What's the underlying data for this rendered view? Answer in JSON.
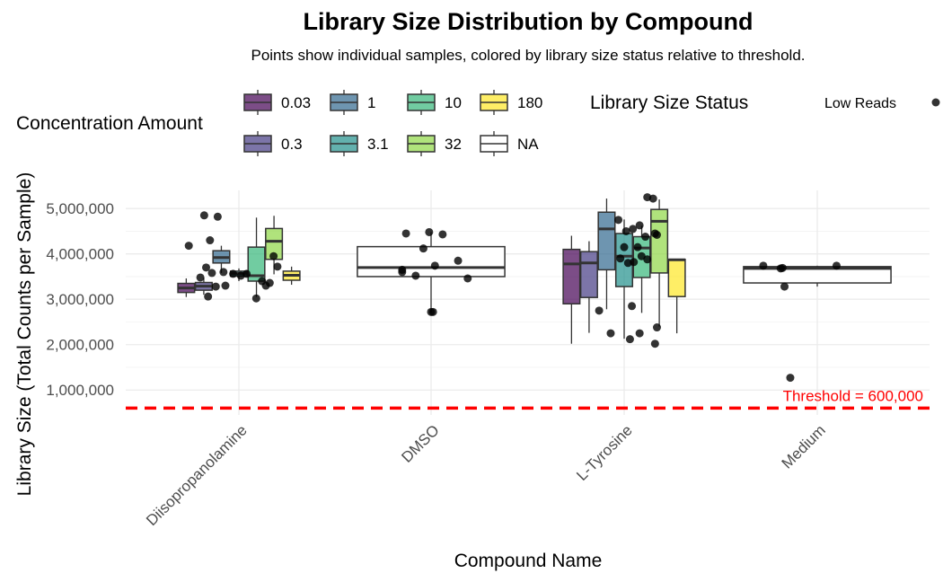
{
  "chart_data": {
    "type": "box",
    "title": "Library Size Distribution by Compound",
    "subtitle": "Points show individual samples, colored by library size status relative to threshold.",
    "xlabel": "Compound Name",
    "ylabel": "Library Size (Total Counts per Sample)",
    "ylim": [
      450000,
      5400000
    ],
    "yticks": [
      1000000,
      2000000,
      3000000,
      4000000,
      5000000
    ],
    "ytick_labels": [
      "1,000,000",
      "2,000,000",
      "3,000,000",
      "4,000,000",
      "5,000,000"
    ],
    "categories": [
      "Diisopropanolamine",
      "DMSO",
      "L-Tyrosine",
      "Medium"
    ],
    "grid": true,
    "threshold": {
      "value": 600000,
      "label": "Threshold = 600,000",
      "color": "#ff0000"
    },
    "legend_fill": {
      "title": "Concentration Amount",
      "items": [
        {
          "label": "0.03",
          "color": "#440154"
        },
        {
          "label": "1",
          "color": "#31688E"
        },
        {
          "label": "10",
          "color": "#35B779"
        },
        {
          "label": "180",
          "color": "#FDE725"
        },
        {
          "label": "0.3",
          "color": "#443A83"
        },
        {
          "label": "3.1",
          "color": "#21908C"
        },
        {
          "label": "32",
          "color": "#8FD744"
        },
        {
          "label": "NA",
          "color": "#ffffff"
        }
      ]
    },
    "legend_points": {
      "title": "Library Size Status",
      "items": [
        {
          "label": "Low Reads",
          "color": "#000000"
        }
      ]
    },
    "boxes": [
      {
        "category": "Diisopropanolamine",
        "concentration": "0.03",
        "color": "#440154",
        "min": 3050000,
        "q1": 3150000,
        "median": 3250000,
        "q3": 3350000,
        "max": 3460000
      },
      {
        "category": "Diisopropanolamine",
        "concentration": "0.3",
        "color": "#443A83",
        "min": 3100000,
        "q1": 3200000,
        "median": 3290000,
        "q3": 3370000,
        "max": 3480000
      },
      {
        "category": "Diisopropanolamine",
        "concentration": "1",
        "color": "#31688E",
        "min": 3580000,
        "q1": 3800000,
        "median": 3920000,
        "q3": 4070000,
        "max": 4180000
      },
      {
        "category": "Diisopropanolamine",
        "concentration": "3.1",
        "color": "#21908C",
        "min": 3400000,
        "q1": 3510000,
        "median": 3570000,
        "q3": 3620000,
        "max": 3680000
      },
      {
        "category": "Diisopropanolamine",
        "concentration": "10",
        "color": "#35B779",
        "min": 3050000,
        "q1": 3400000,
        "median": 3520000,
        "q3": 4150000,
        "max": 4800000
      },
      {
        "category": "Diisopropanolamine",
        "concentration": "32",
        "color": "#8FD744",
        "min": 3550000,
        "q1": 3880000,
        "median": 4280000,
        "q3": 4560000,
        "max": 4840000
      },
      {
        "category": "Diisopropanolamine",
        "concentration": "180",
        "color": "#FDE725",
        "min": 3320000,
        "q1": 3420000,
        "median": 3530000,
        "q3": 3620000,
        "max": 3720000
      },
      {
        "category": "DMSO",
        "concentration": "NA",
        "color": "#ffffff",
        "min": 2700000,
        "q1": 3500000,
        "median": 3700000,
        "q3": 4160000,
        "max": 4480000
      },
      {
        "category": "L-Tyrosine",
        "concentration": "0.03",
        "color": "#440154",
        "min": 2020000,
        "q1": 2900000,
        "median": 3780000,
        "q3": 4100000,
        "max": 4400000
      },
      {
        "category": "L-Tyrosine",
        "concentration": "0.3",
        "color": "#443A83",
        "min": 2260000,
        "q1": 3040000,
        "median": 3800000,
        "q3": 4050000,
        "max": 4280000
      },
      {
        "category": "L-Tyrosine",
        "concentration": "1",
        "color": "#31688E",
        "min": 2780000,
        "q1": 3650000,
        "median": 4550000,
        "q3": 4920000,
        "max": 5220000
      },
      {
        "category": "L-Tyrosine",
        "concentration": "3.1",
        "color": "#21908C",
        "min": 2130000,
        "q1": 3280000,
        "median": 3950000,
        "q3": 4450000,
        "max": 4760000
      },
      {
        "category": "L-Tyrosine",
        "concentration": "10",
        "color": "#35B779",
        "min": 2700000,
        "q1": 3480000,
        "median": 4130000,
        "q3": 4380000,
        "max": 4620000
      },
      {
        "category": "L-Tyrosine",
        "concentration": "32",
        "color": "#8FD744",
        "min": 2400000,
        "q1": 3580000,
        "median": 4720000,
        "q3": 4980000,
        "max": 5200000
      },
      {
        "category": "L-Tyrosine",
        "concentration": "180",
        "color": "#FDE725",
        "min": 2250000,
        "q1": 3060000,
        "median": 3870000,
        "q3": 3880000,
        "max": 3890000
      },
      {
        "category": "Medium",
        "concentration": "NA",
        "color": "#ffffff",
        "min": 3280000,
        "q1": 3360000,
        "median": 3680000,
        "q3": 3720000,
        "max": 3740000
      }
    ],
    "points": [
      {
        "category": "Diisopropanolamine",
        "offset": -0.26,
        "y": 4180000
      },
      {
        "category": "Diisopropanolamine",
        "offset": -0.2,
        "y": 3480000
      },
      {
        "category": "Diisopropanolamine",
        "offset": -0.17,
        "y": 3700000
      },
      {
        "category": "Diisopropanolamine",
        "offset": -0.18,
        "y": 4850000
      },
      {
        "category": "Diisopropanolamine",
        "offset": -0.16,
        "y": 3060000
      },
      {
        "category": "Diisopropanolamine",
        "offset": -0.15,
        "y": 4300000
      },
      {
        "category": "Diisopropanolamine",
        "offset": -0.14,
        "y": 3580000
      },
      {
        "category": "Diisopropanolamine",
        "offset": -0.12,
        "y": 3280000
      },
      {
        "category": "Diisopropanolamine",
        "offset": -0.11,
        "y": 4820000
      },
      {
        "category": "Diisopropanolamine",
        "offset": -0.08,
        "y": 3600000
      },
      {
        "category": "Diisopropanolamine",
        "offset": -0.07,
        "y": 3300000
      },
      {
        "category": "Diisopropanolamine",
        "offset": -0.03,
        "y": 3560000
      },
      {
        "category": "Diisopropanolamine",
        "offset": 0.01,
        "y": 3520000
      },
      {
        "category": "Diisopropanolamine",
        "offset": 0.04,
        "y": 3560000
      },
      {
        "category": "Diisopropanolamine",
        "offset": 0.09,
        "y": 3020000
      },
      {
        "category": "Diisopropanolamine",
        "offset": 0.12,
        "y": 3400000
      },
      {
        "category": "Diisopropanolamine",
        "offset": 0.14,
        "y": 3300000
      },
      {
        "category": "Diisopropanolamine",
        "offset": 0.16,
        "y": 3360000
      },
      {
        "category": "Diisopropanolamine",
        "offset": 0.18,
        "y": 3950000
      },
      {
        "category": "Diisopropanolamine",
        "offset": 0.2,
        "y": 3720000
      },
      {
        "category": "DMSO",
        "offset": -0.15,
        "y": 3650000
      },
      {
        "category": "DMSO",
        "offset": -0.15,
        "y": 3600000
      },
      {
        "category": "DMSO",
        "offset": -0.13,
        "y": 4450000
      },
      {
        "category": "DMSO",
        "offset": -0.08,
        "y": 3520000
      },
      {
        "category": "DMSO",
        "offset": -0.04,
        "y": 4120000
      },
      {
        "category": "DMSO",
        "offset": -0.01,
        "y": 4480000
      },
      {
        "category": "DMSO",
        "offset": 0.0,
        "y": 2720000
      },
      {
        "category": "DMSO",
        "offset": 0.01,
        "y": 2720000
      },
      {
        "category": "DMSO",
        "offset": 0.02,
        "y": 3740000
      },
      {
        "category": "DMSO",
        "offset": 0.06,
        "y": 4430000
      },
      {
        "category": "DMSO",
        "offset": 0.14,
        "y": 3850000
      },
      {
        "category": "DMSO",
        "offset": 0.19,
        "y": 3460000
      },
      {
        "category": "L-Tyrosine",
        "offset": -0.13,
        "y": 2750000
      },
      {
        "category": "L-Tyrosine",
        "offset": -0.07,
        "y": 2250000
      },
      {
        "category": "L-Tyrosine",
        "offset": -0.03,
        "y": 4750000
      },
      {
        "category": "L-Tyrosine",
        "offset": -0.02,
        "y": 3900000
      },
      {
        "category": "L-Tyrosine",
        "offset": 0.0,
        "y": 4150000
      },
      {
        "category": "L-Tyrosine",
        "offset": 0.01,
        "y": 4500000
      },
      {
        "category": "L-Tyrosine",
        "offset": 0.02,
        "y": 3800000
      },
      {
        "category": "L-Tyrosine",
        "offset": 0.03,
        "y": 2120000
      },
      {
        "category": "L-Tyrosine",
        "offset": 0.04,
        "y": 2850000
      },
      {
        "category": "L-Tyrosine",
        "offset": 0.045,
        "y": 4550000
      },
      {
        "category": "L-Tyrosine",
        "offset": 0.05,
        "y": 3820000
      },
      {
        "category": "L-Tyrosine",
        "offset": 0.07,
        "y": 4150000
      },
      {
        "category": "L-Tyrosine",
        "offset": 0.08,
        "y": 2250000
      },
      {
        "category": "L-Tyrosine",
        "offset": 0.08,
        "y": 4630000
      },
      {
        "category": "L-Tyrosine",
        "offset": 0.09,
        "y": 3950000
      },
      {
        "category": "L-Tyrosine",
        "offset": 0.11,
        "y": 4380000
      },
      {
        "category": "L-Tyrosine",
        "offset": 0.12,
        "y": 3880000
      },
      {
        "category": "L-Tyrosine",
        "offset": 0.12,
        "y": 5250000
      },
      {
        "category": "L-Tyrosine",
        "offset": 0.15,
        "y": 5220000
      },
      {
        "category": "L-Tyrosine",
        "offset": 0.16,
        "y": 4450000
      },
      {
        "category": "L-Tyrosine",
        "offset": 0.16,
        "y": 2020000
      },
      {
        "category": "L-Tyrosine",
        "offset": 0.17,
        "y": 2380000
      },
      {
        "category": "L-Tyrosine",
        "offset": 0.17,
        "y": 4420000
      },
      {
        "category": "Medium",
        "offset": -0.28,
        "y": 3740000
      },
      {
        "category": "Medium",
        "offset": -0.19,
        "y": 3680000
      },
      {
        "category": "Medium",
        "offset": -0.18,
        "y": 3690000
      },
      {
        "category": "Medium",
        "offset": -0.17,
        "y": 3280000
      },
      {
        "category": "Medium",
        "offset": -0.14,
        "y": 1270000
      },
      {
        "category": "Medium",
        "offset": 0.1,
        "y": 3740000
      }
    ]
  }
}
